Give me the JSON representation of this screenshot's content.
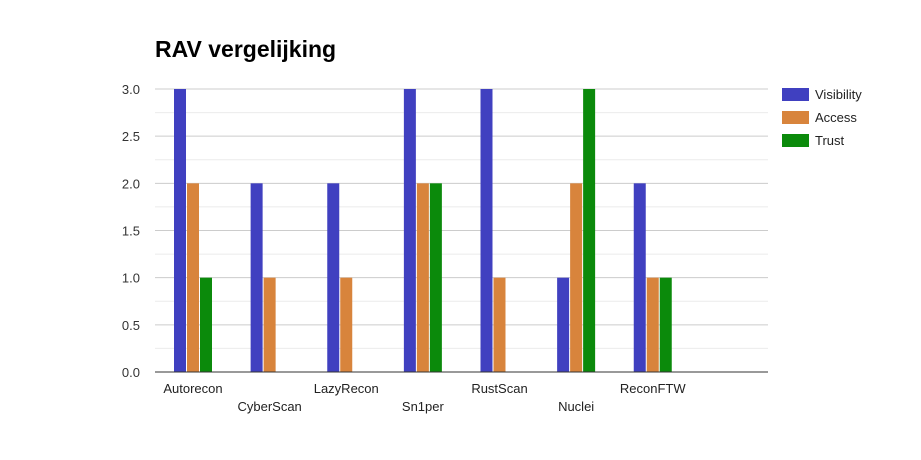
{
  "chart_data": {
    "type": "bar",
    "title": "RAV vergelijking",
    "categories": [
      "Autorecon",
      "CyberScan",
      "LazyRecon",
      "Sn1per",
      "RustScan",
      "Nuclei",
      "ReconFTW",
      ""
    ],
    "series": [
      {
        "name": "Visibility",
        "color": "#4040c0",
        "values": [
          3,
          2,
          2,
          3,
          3,
          1,
          2,
          0
        ]
      },
      {
        "name": "Access",
        "color": "#d8843c",
        "values": [
          2,
          1,
          1,
          2,
          1,
          2,
          1,
          0
        ]
      },
      {
        "name": "Trust",
        "color": "#0b8a0b",
        "values": [
          1,
          0,
          0,
          2,
          0,
          3,
          1,
          0
        ]
      }
    ],
    "ylim": [
      0,
      3
    ],
    "yticks": [
      "0.0",
      "0.5",
      "1.0",
      "1.5",
      "2.0",
      "2.5",
      "3.0"
    ],
    "grid": true,
    "legend_position": "right"
  }
}
